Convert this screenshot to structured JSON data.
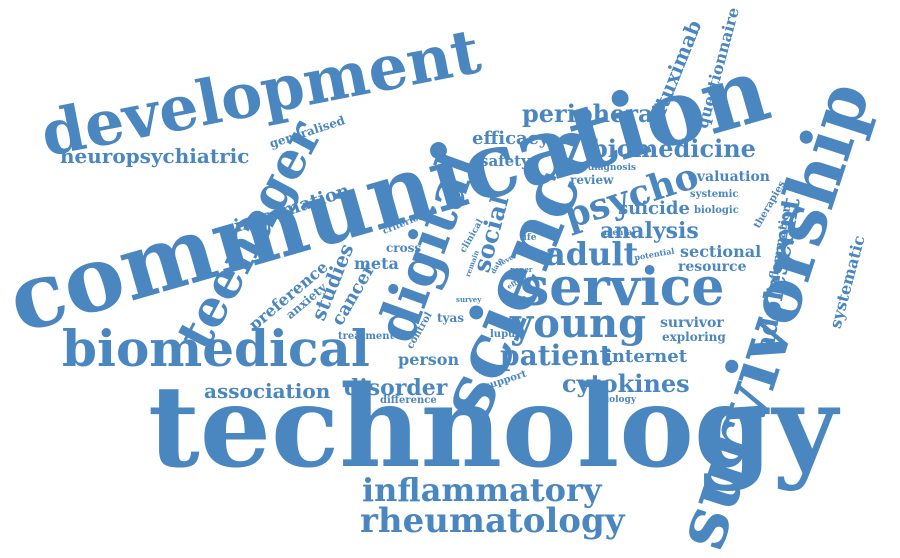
{
  "word_cloud": {
    "color": "#4a86bf",
    "background": "#ffffff",
    "words": {
      "technology": "technology",
      "communication": "communication",
      "survivorship": "survivorship",
      "development": "development",
      "science": "science",
      "biomedical": "biomedical",
      "service": "service",
      "teenager": "teenager",
      "digital": "digital",
      "rheumatology": "rheumatology",
      "inflammatory": "inflammatory",
      "young": "young",
      "adult": "adult",
      "adolescent": "adolescent",
      "biomedicine": "biomedicine",
      "psycho": "psycho",
      "patient": "patient",
      "cytokines": "cytokines",
      "peripheral": "peripheral",
      "neuropsychiatric": "neuropsychiatric",
      "association": "association",
      "disorder": "disorder",
      "analysis": "analysis",
      "social": "social",
      "internet": "internet",
      "information": "information",
      "studies": "studies",
      "cancer": "cancer",
      "preference": "preference",
      "efficacy": "efficacy",
      "rituximab": "rituximab",
      "questionnaire": "questionnaire",
      "systematic": "systematic",
      "inflammation": "inflammation",
      "suicide": "suicide",
      "evaluation": "evaluation",
      "sectional": "sectional",
      "resource": "resource",
      "survivor": "survivor",
      "exploring": "exploring",
      "person": "person",
      "meta": "meta",
      "safety": "safety",
      "generalised": "generalised",
      "review": "review",
      "anxiety": "anxiety",
      "treatment": "treatment",
      "difference": "difference",
      "tyas": "tyas",
      "lupus": "lupus",
      "cross": "cross",
      "control": "control",
      "support": "support",
      "diagnosis": "diagnosis",
      "systemic": "systemic",
      "biologic": "biologic",
      "therapies": "therapies",
      "criterion": "criterion",
      "clinical": "clinical",
      "life": "life",
      "mental": "mental",
      "potential": "potential",
      "paper": "paper",
      "effect": "effect",
      "data": "data",
      "remain": "remain",
      "level": "level",
      "survey": "survey",
      "aetiology": "aetiology"
    }
  }
}
